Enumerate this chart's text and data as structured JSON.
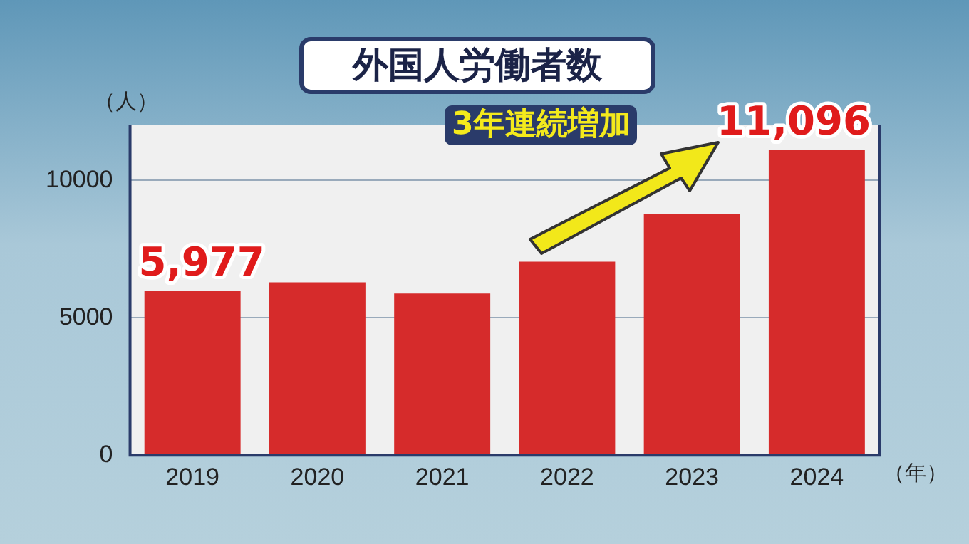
{
  "chart_data": {
    "type": "bar",
    "title": "外国人労働者数",
    "ylabel": "（人）",
    "xlabel": "（年）",
    "categories": [
      "2019",
      "2020",
      "2021",
      "2022",
      "2023",
      "2024"
    ],
    "values": [
      5977,
      6290,
      5880,
      7040,
      8760,
      11096
    ],
    "value_labels": [
      "5,977",
      null,
      null,
      null,
      null,
      "11,096"
    ],
    "color": "#d62b2b",
    "ylim": [
      0,
      12000
    ],
    "yticks": [
      0,
      5000,
      10000
    ],
    "grid": "y",
    "legend": false,
    "annotations": [
      "3年連続増加"
    ]
  }
}
